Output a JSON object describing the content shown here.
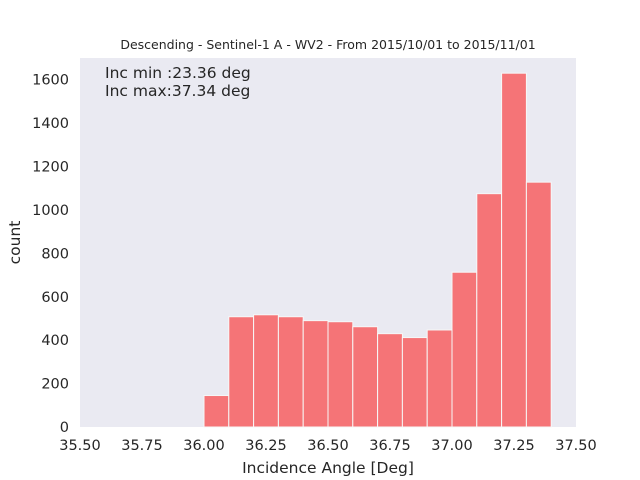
{
  "chart_data": {
    "type": "bar",
    "title": "Descending - Sentinel-1 A - WV2 - From 2015/10/01 to 2015/11/01",
    "xlabel": "Incidence Angle [Deg]",
    "ylabel": "count",
    "xlim": [
      35.5,
      37.5
    ],
    "ylim": [
      0,
      1700
    ],
    "xticks": [
      35.5,
      35.75,
      36.0,
      36.25,
      36.5,
      36.75,
      37.0,
      37.25,
      37.5
    ],
    "xtick_labels": [
      "35.50",
      "35.75",
      "36.00",
      "36.25",
      "36.50",
      "36.75",
      "37.00",
      "37.25",
      "37.50"
    ],
    "yticks": [
      0,
      200,
      400,
      600,
      800,
      1000,
      1200,
      1400,
      1600
    ],
    "ytick_labels": [
      "0",
      "200",
      "400",
      "600",
      "800",
      "1000",
      "1200",
      "1400",
      "1600"
    ],
    "bins": [
      {
        "start": 36.0,
        "end": 36.1,
        "count": 145
      },
      {
        "start": 36.1,
        "end": 36.2,
        "count": 508
      },
      {
        "start": 36.2,
        "end": 36.3,
        "count": 517
      },
      {
        "start": 36.3,
        "end": 36.4,
        "count": 508
      },
      {
        "start": 36.4,
        "end": 36.5,
        "count": 490
      },
      {
        "start": 36.5,
        "end": 36.6,
        "count": 485
      },
      {
        "start": 36.6,
        "end": 36.7,
        "count": 462
      },
      {
        "start": 36.7,
        "end": 36.8,
        "count": 430
      },
      {
        "start": 36.8,
        "end": 36.9,
        "count": 412
      },
      {
        "start": 36.9,
        "end": 37.0,
        "count": 447
      },
      {
        "start": 37.0,
        "end": 37.1,
        "count": 713
      },
      {
        "start": 37.1,
        "end": 37.2,
        "count": 1075
      },
      {
        "start": 37.2,
        "end": 37.3,
        "count": 1630
      },
      {
        "start": 37.3,
        "end": 37.4,
        "count": 1128
      }
    ],
    "annotations": [
      "Inc min :23.36 deg",
      "Inc max:37.34 deg"
    ],
    "grid": false,
    "colors": {
      "bar_fill": "#f57477",
      "bar_edge": "#f7f7f7",
      "axes_bg": "#eaeaf2",
      "text": "#262626"
    }
  }
}
